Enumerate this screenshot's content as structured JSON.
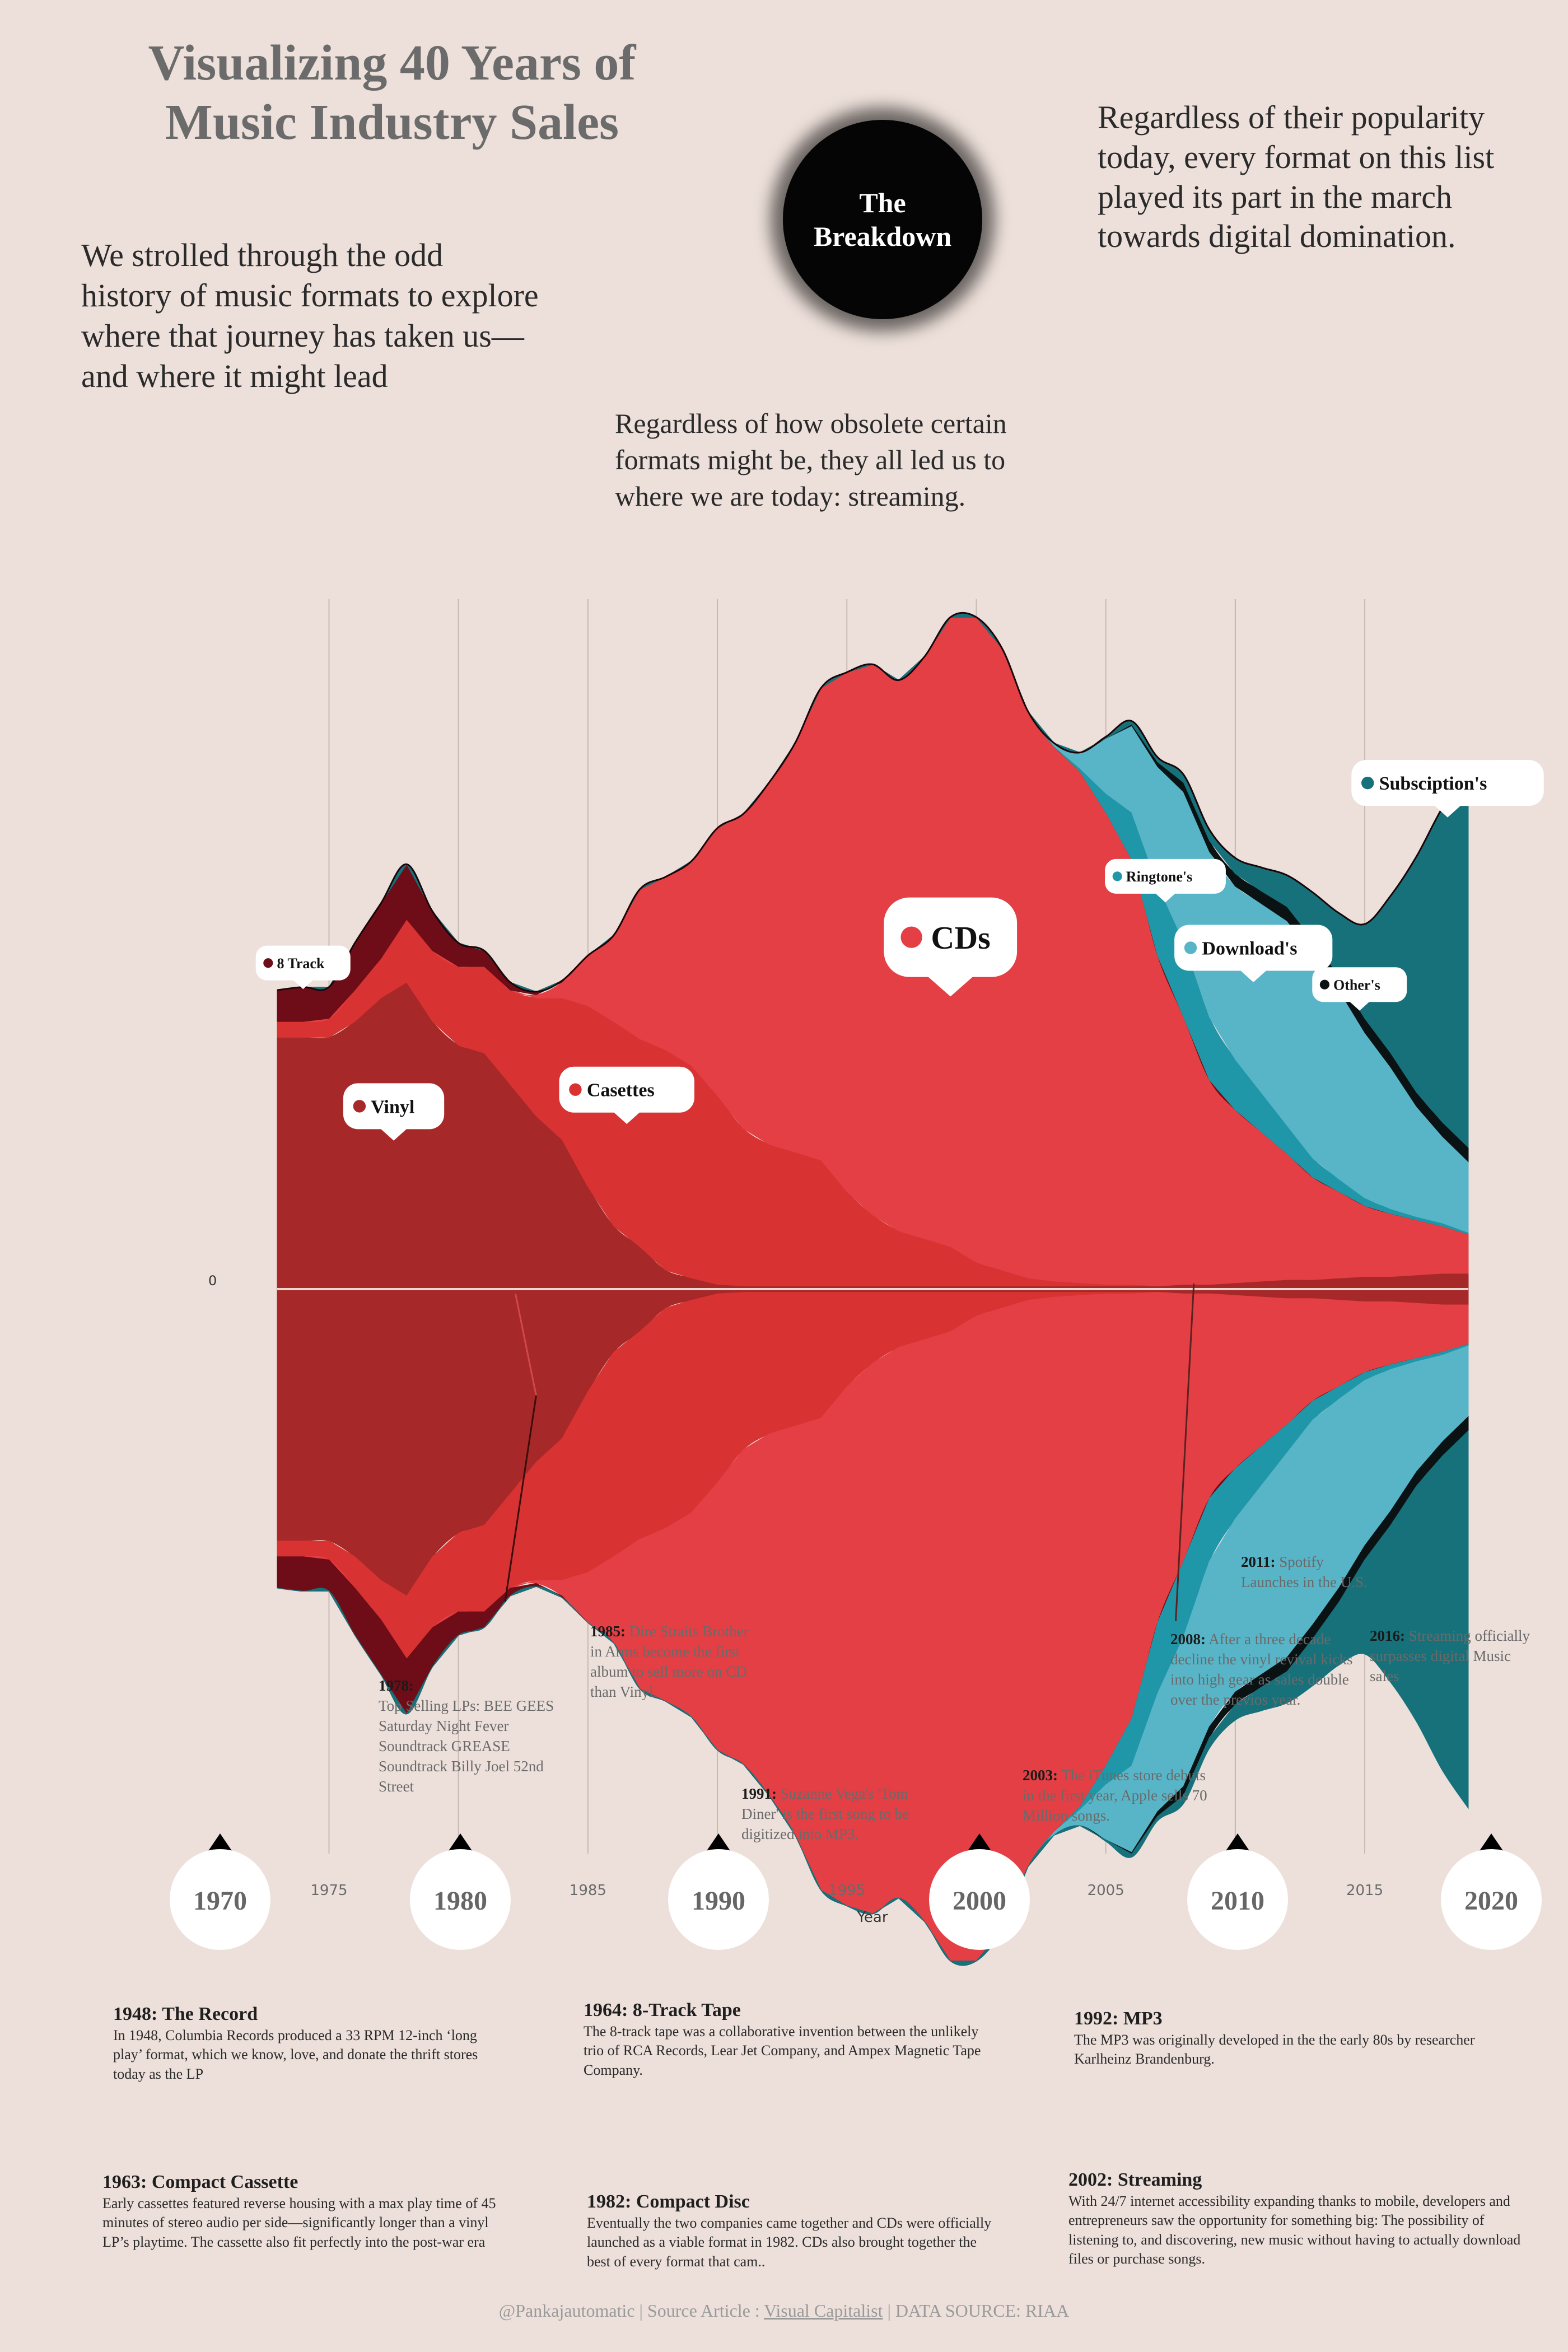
{
  "title": "Visualizing 40 Years of Music Industry Sales",
  "intro_left": "We strolled through the odd history of music formats to explore where that journey has taken us—and where it might lead",
  "intro_right": "Regardless of their popularity today, every format on this list played its part in the march towards digital domination.",
  "intro_mid": "Regardless of how obsolete certain formats might be, they all led us to where we are today: streaming.",
  "breakdown": "The\nBreakdown",
  "chart_data": {
    "type": "area",
    "subtype": "mirrored-streamgraph",
    "xlabel": "Year",
    "ylabel": "",
    "zero_label": "0",
    "x": [
      1973,
      1974,
      1975,
      1976,
      1977,
      1978,
      1979,
      1980,
      1981,
      1982,
      1983,
      1984,
      1985,
      1986,
      1987,
      1988,
      1989,
      1990,
      1991,
      1992,
      1993,
      1994,
      1995,
      1996,
      1997,
      1998,
      1999,
      2000,
      2001,
      2002,
      2003,
      2004,
      2005,
      2006,
      2007,
      2008,
      2009,
      2010,
      2011,
      2012,
      2013,
      2014,
      2015,
      2016,
      2017,
      2018,
      2019
    ],
    "x_ticks": [
      1975,
      1980,
      1985,
      1990,
      1995,
      2000,
      2005,
      2010,
      2015
    ],
    "decade_markers": [
      "1970",
      "1980",
      "1990",
      "2000",
      "2010",
      "2020"
    ],
    "series": [
      {
        "name": "Vinyl",
        "color": "#a72828",
        "values": [
          1.6,
          1.6,
          1.6,
          1.7,
          1.85,
          1.95,
          1.7,
          1.55,
          1.5,
          1.3,
          1.1,
          0.95,
          0.65,
          0.4,
          0.27,
          0.12,
          0.07,
          0.03,
          0.02,
          0.02,
          0.02,
          0.02,
          0.02,
          0.02,
          0.02,
          0.02,
          0.02,
          0.02,
          0.02,
          0.02,
          0.02,
          0.02,
          0.02,
          0.02,
          0.02,
          0.03,
          0.03,
          0.04,
          0.05,
          0.06,
          0.06,
          0.07,
          0.08,
          0.08,
          0.09,
          0.1,
          0.1
        ]
      },
      {
        "name": "Casettes",
        "color": "#d83232",
        "values": [
          0.1,
          0.1,
          0.12,
          0.2,
          0.25,
          0.4,
          0.45,
          0.5,
          0.55,
          0.6,
          0.75,
          0.9,
          1.15,
          1.3,
          1.32,
          1.4,
          1.35,
          1.2,
          1.0,
          0.9,
          0.85,
          0.8,
          0.6,
          0.45,
          0.35,
          0.3,
          0.25,
          0.15,
          0.1,
          0.05,
          0.03,
          0.02,
          0.01,
          0.01,
          0,
          0,
          0,
          0,
          0,
          0,
          0,
          0,
          0,
          0,
          0,
          0,
          0
        ]
      },
      {
        "name": "CDs",
        "color": "#e33f44",
        "values": [
          0,
          0,
          0,
          0,
          0,
          0,
          0,
          0,
          0,
          0,
          0.02,
          0.1,
          0.32,
          0.55,
          0.95,
          1.1,
          1.3,
          1.7,
          2.0,
          2.3,
          2.6,
          3.0,
          3.3,
          3.5,
          3.5,
          3.7,
          4.0,
          4.1,
          3.95,
          3.6,
          3.4,
          3.25,
          3.0,
          2.7,
          2.1,
          1.7,
          1.3,
          1.1,
          0.95,
          0.8,
          0.65,
          0.55,
          0.45,
          0.4,
          0.35,
          0.3,
          0.25
        ]
      },
      {
        "name": "8 Track",
        "color": "#6e0d17",
        "values": [
          0.2,
          0.22,
          0.2,
          0.3,
          0.35,
          0.35,
          0.25,
          0.15,
          0.1,
          0.05,
          0.02,
          0.01,
          0,
          0,
          0,
          0,
          0,
          0,
          0,
          0,
          0,
          0,
          0,
          0,
          0,
          0,
          0,
          0,
          0,
          0,
          0,
          0,
          0,
          0,
          0,
          0,
          0,
          0,
          0,
          0,
          0,
          0,
          0,
          0,
          0,
          0,
          0
        ]
      },
      {
        "name": "Ringtone's",
        "color": "#1f97a8",
        "values": [
          0,
          0,
          0,
          0,
          0,
          0,
          0,
          0,
          0,
          0,
          0,
          0,
          0,
          0,
          0,
          0,
          0,
          0,
          0,
          0,
          0,
          0,
          0,
          0,
          0,
          0,
          0,
          0,
          0,
          0,
          0,
          0.02,
          0.12,
          0.3,
          0.45,
          0.48,
          0.4,
          0.32,
          0.25,
          0.18,
          0.12,
          0.08,
          0.05,
          0.03,
          0.02,
          0.02,
          0.01
        ]
      },
      {
        "name": "Download's",
        "color": "#58b5c8",
        "values": [
          0,
          0,
          0,
          0,
          0,
          0,
          0,
          0,
          0,
          0,
          0,
          0,
          0,
          0,
          0,
          0,
          0,
          0,
          0,
          0,
          0,
          0,
          0,
          0,
          0,
          0,
          0,
          0,
          0,
          0,
          0.02,
          0.1,
          0.35,
          0.55,
          0.75,
          0.95,
          1.05,
          1.1,
          1.2,
          1.3,
          1.3,
          1.2,
          1.05,
          0.9,
          0.7,
          0.55,
          0.45
        ]
      },
      {
        "name": "Other's",
        "color": "#0b1214",
        "values": [
          0,
          0,
          0,
          0,
          0,
          0,
          0,
          0,
          0,
          0,
          0,
          0,
          0,
          0,
          0,
          0,
          0,
          0,
          0,
          0,
          0,
          0,
          0,
          0,
          0,
          0,
          0,
          0,
          0,
          0,
          0,
          0,
          0,
          0.01,
          0.03,
          0.06,
          0.07,
          0.08,
          0.08,
          0.09,
          0.09,
          0.09,
          0.09,
          0.09,
          0.09,
          0.09,
          0.09
        ]
      },
      {
        "name": "Subsciption's",
        "color": "#16717b",
        "values": [
          0,
          0,
          0,
          0,
          0,
          0,
          0,
          0,
          0,
          0,
          0,
          0,
          0,
          0,
          0,
          0,
          0,
          0,
          0,
          0,
          0,
          0,
          0,
          0,
          0,
          0,
          0,
          0,
          0,
          0,
          0,
          0,
          0.01,
          0.02,
          0.03,
          0.05,
          0.07,
          0.1,
          0.15,
          0.2,
          0.3,
          0.4,
          0.6,
          1.0,
          1.5,
          2.0,
          2.4
        ]
      }
    ],
    "labels": [
      {
        "series": "8 Track",
        "text": "8 Track",
        "size": "small"
      },
      {
        "series": "Vinyl",
        "text": "Vinyl",
        "size": "medium"
      },
      {
        "series": "Casettes",
        "text": "Casettes",
        "size": "medium"
      },
      {
        "series": "CDs",
        "text": "CDs",
        "size": "large"
      },
      {
        "series": "Ringtone's",
        "text": "Ringtone's",
        "size": "small"
      },
      {
        "series": "Download's",
        "text": "Download's",
        "size": "medium"
      },
      {
        "series": "Other's",
        "text": "Other's",
        "size": "small"
      },
      {
        "series": "Subsciption's",
        "text": "Subsciption's",
        "size": "medium"
      }
    ]
  },
  "milestones": [
    {
      "head": "1978:",
      "text": "Top Selling LPs: BEE GEES Saturday Night Fever Soundtrack GREASE Soundtrack Billy Joel 52nd Street"
    },
    {
      "head": "1985:",
      "text": "Dire Straits Brother in Arms become the first album to sell more on CD than Vinyl."
    },
    {
      "head": "1991:",
      "text": "Suzanne Vega's 'Tom Diner' is the first song to be digitized into MP3."
    },
    {
      "head": "2003:",
      "text": "The iTunes store debuts in the first year, Apple sells 70 Million songs."
    },
    {
      "head": "2008:",
      "text": "After a three decade decline the vinyl revival kicks into high gear as sales double over the previos year."
    },
    {
      "head": "2011:",
      "text": "Spotify Launches in the U.S."
    },
    {
      "head": "2016:",
      "text": "Streaming officially surpasses digital Music sales"
    }
  ],
  "history": [
    {
      "title": "1948: The Record",
      "text": "In 1948, Columbia Records produced a 33 RPM 12-inch ‘long play’ format, which we know, love, and donate the thrift stores today as the LP"
    },
    {
      "title": "1964: 8-Track Tape",
      "text": "The 8-track tape was a collaborative invention between the unlikely trio of RCA Records, Lear Jet Company, and Ampex Magnetic Tape Company."
    },
    {
      "title": "1992: MP3",
      "text": "The MP3 was originally developed in the the early 80s by researcher Karlheinz Brandenburg."
    },
    {
      "title": "1963: Compact Cassette",
      "text": "Early cassettes featured reverse housing with a max play time of 45 minutes of stereo audio per side—significantly longer than a vinyl LP’s playtime. The cassette also fit perfectly into the post-war era"
    },
    {
      "title": "1982: Compact Disc",
      "text": "Eventually the two companies came together and CDs were officially launched as a viable format in 1982. CDs also brought together the best of every format that cam.."
    },
    {
      "title": "2002: Streaming",
      "text": "With 24/7 internet accessibility expanding thanks to mobile, developers and entrepreneurs saw the opportunity for something big: The possibility of listening to, and discovering, new music without having to actually download files or purchase songs."
    }
  ],
  "footer": {
    "handle": "@Pankajautomatic",
    "source_prefix": "Source Article :",
    "source_name": "Visual Capitalist",
    "data_source": "DATA SOURCE: RIAA"
  }
}
